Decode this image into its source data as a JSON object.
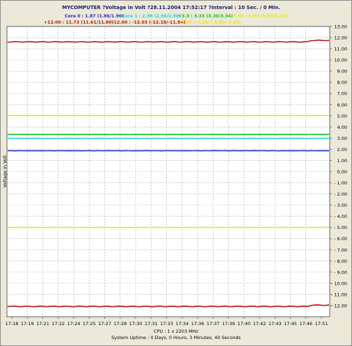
{
  "chart_data": {
    "type": "line",
    "title": "MYCOMPUTER ?Voltage in Volt ?28.11.2004 17:52:17 ?Interval : 10 Sec. / 0 Min.",
    "ylabel": "Voltage in Volt",
    "xlabel_lines": [
      "CPU : 1 x 2203 MHz",
      "System Uptime :  0 Days, 0 Hours, 3 Minutes, 40 Seconds"
    ],
    "ylim": [
      -13,
      13
    ],
    "y_ticks": [
      "13.00",
      "12.00",
      "11.00",
      "10.00",
      "9.00",
      "8.00",
      "7.00",
      "6.00",
      "5.00",
      "4.00",
      "3.00",
      "2.00",
      "1.00",
      "0.00",
      "- 1.00",
      "- 2.00",
      "- 3.00",
      "- 4.00",
      "- 5.00",
      "- 6.00",
      "- 7.00",
      "- 8.00",
      "- 9.00",
      "- 10.00",
      "- 11.00",
      "- 12.00"
    ],
    "x_ticks": [
      "17:18",
      "17:19",
      "17:21",
      "17:22",
      "17:24",
      "17:25",
      "17:27",
      "17:28",
      "17:30",
      "17:31",
      "17:33",
      "17:34",
      "17:36",
      "17:37",
      "17:39",
      "17:40",
      "17:42",
      "17:43",
      "17:45",
      "17:46",
      "17:51"
    ],
    "grid": true,
    "legend_placement": "top",
    "series": [
      {
        "name": "Core 0 : 1.87 (1.86/1.90)",
        "color": "#1f2fbf",
        "value": 1.87,
        "legend_row": 0
      },
      {
        "name": "Core 1 : 2.98 (2.96/2.98)",
        "color": "#22d6d6",
        "value": 2.98,
        "legend_row": 0
      },
      {
        "name": "+3.3 : 3.33 (3.30/3.34)",
        "color": "#17c117",
        "value": 3.33,
        "legend_row": 0
      },
      {
        "name": "+5.00 : 5.03 (5.00/5.03)",
        "color": "#e8e817",
        "value": 5.03,
        "legend_row": 0
      },
      {
        "name": "+12.00 : 11.73 (11.61/11.80)",
        "color": "#b51818",
        "value": 11.62,
        "end_value": 11.75,
        "legend_row": 1
      },
      {
        "name": "-12.00 : -12.03 (-12.19/-11.94)",
        "color": "#b51818",
        "value": -12.08,
        "end_value": -11.96,
        "legend_row": 1
      },
      {
        "name": "-5.00 : -5.00 (-5.00/-5.00)",
        "color": "#e8e817",
        "value": -5.0,
        "legend_row": 1
      }
    ]
  }
}
